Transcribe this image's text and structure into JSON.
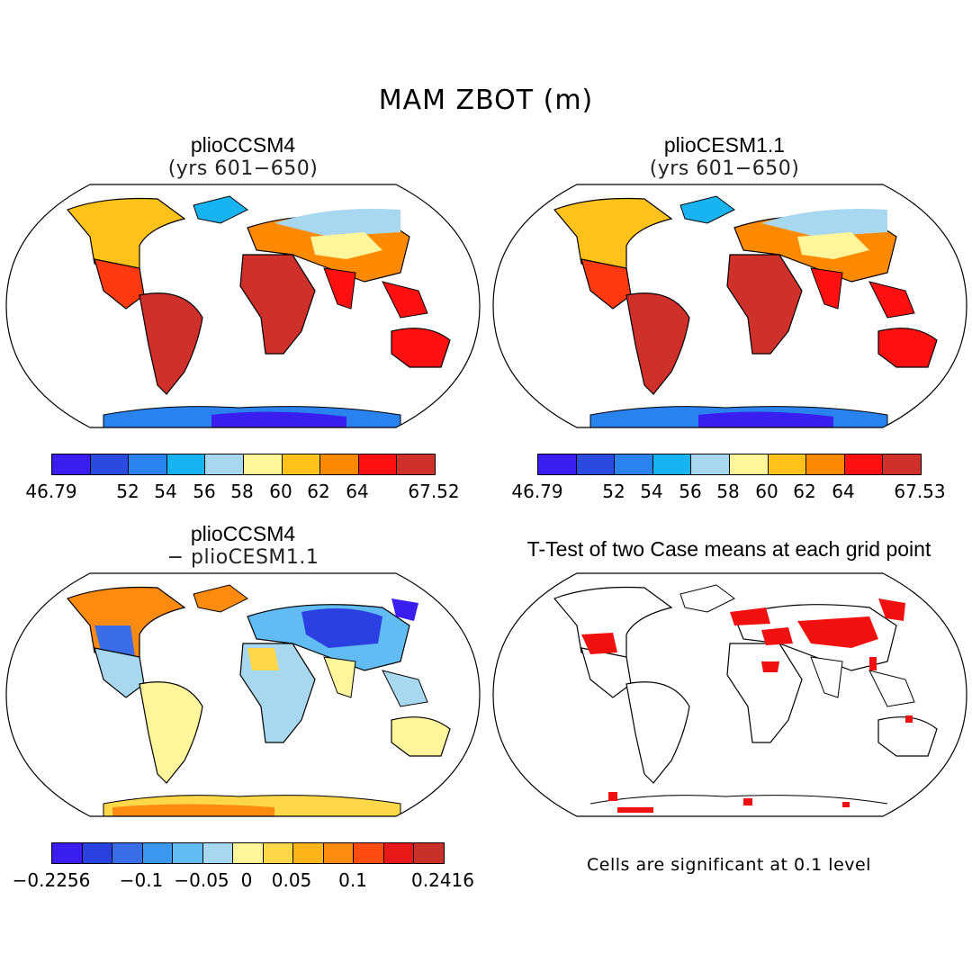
{
  "figure": {
    "title": "MAM ZBOT (m)"
  },
  "panels": [
    {
      "id": "p1",
      "title": "plioCCSM4",
      "subtitle": "(yrs 601−650)",
      "colorbar": {
        "labels": [
          "46.79",
          "52",
          "54",
          "56",
          "58",
          "60",
          "62",
          "64",
          "67.52"
        ],
        "colors": [
          "#3a1ef0",
          "#2c4ae0",
          "#2a82ee",
          "#18b4f2",
          "#a8d8f0",
          "#fff59a",
          "#ffc21a",
          "#ff8a00",
          "#ff1010",
          "#d0302a"
        ]
      }
    },
    {
      "id": "p2",
      "title": "plioCESM1.1",
      "subtitle": "(yrs 601−650)",
      "colorbar": {
        "labels": [
          "46.79",
          "52",
          "54",
          "56",
          "58",
          "60",
          "62",
          "64",
          "67.53"
        ],
        "colors": [
          "#3a1ef0",
          "#2c4ae0",
          "#2a82ee",
          "#18b4f2",
          "#a8d8f0",
          "#fff59a",
          "#ffc21a",
          "#ff8a00",
          "#ff1010",
          "#d0302a"
        ]
      }
    },
    {
      "id": "p3",
      "title": "plioCCSM4",
      "subtitle": "− plioCESM1.1",
      "colorbar": {
        "labels": [
          "−0.2256",
          "−0.1",
          "−0.05",
          "0",
          "0.05",
          "0.1",
          "0.2416"
        ],
        "colors": [
          "#3a1ef0",
          "#2a40e0",
          "#3a6ce8",
          "#3a98ee",
          "#60bcf2",
          "#a8d8f0",
          "#fff59a",
          "#ffd84a",
          "#ffb41a",
          "#ff8a10",
          "#ff4a10",
          "#e81818",
          "#c8302a"
        ]
      }
    },
    {
      "id": "p4",
      "title": "T-Test of two Case means at each grid point",
      "note": "Cells are significant at 0.1 level"
    }
  ],
  "chart_data": {
    "type": "map",
    "variable": "ZBOT",
    "season": "MAM",
    "units": "m",
    "cases": [
      "plioCCSM4",
      "plioCESM1.1"
    ],
    "years": "601-650",
    "panels": [
      {
        "name": "plioCCSM4",
        "range": [
          46.79,
          67.52
        ],
        "levels": [
          52,
          54,
          56,
          58,
          60,
          62,
          64
        ]
      },
      {
        "name": "plioCESM1.1",
        "range": [
          46.79,
          67.53
        ],
        "levels": [
          52,
          54,
          56,
          58,
          60,
          62,
          64
        ]
      },
      {
        "name": "plioCCSM4 - plioCESM1.1",
        "range": [
          -0.2256,
          0.2416
        ],
        "levels": [
          -0.1,
          -0.05,
          0,
          0.05,
          0.1
        ]
      },
      {
        "name": "T-Test significance",
        "significance_level": 0.1
      }
    ]
  }
}
